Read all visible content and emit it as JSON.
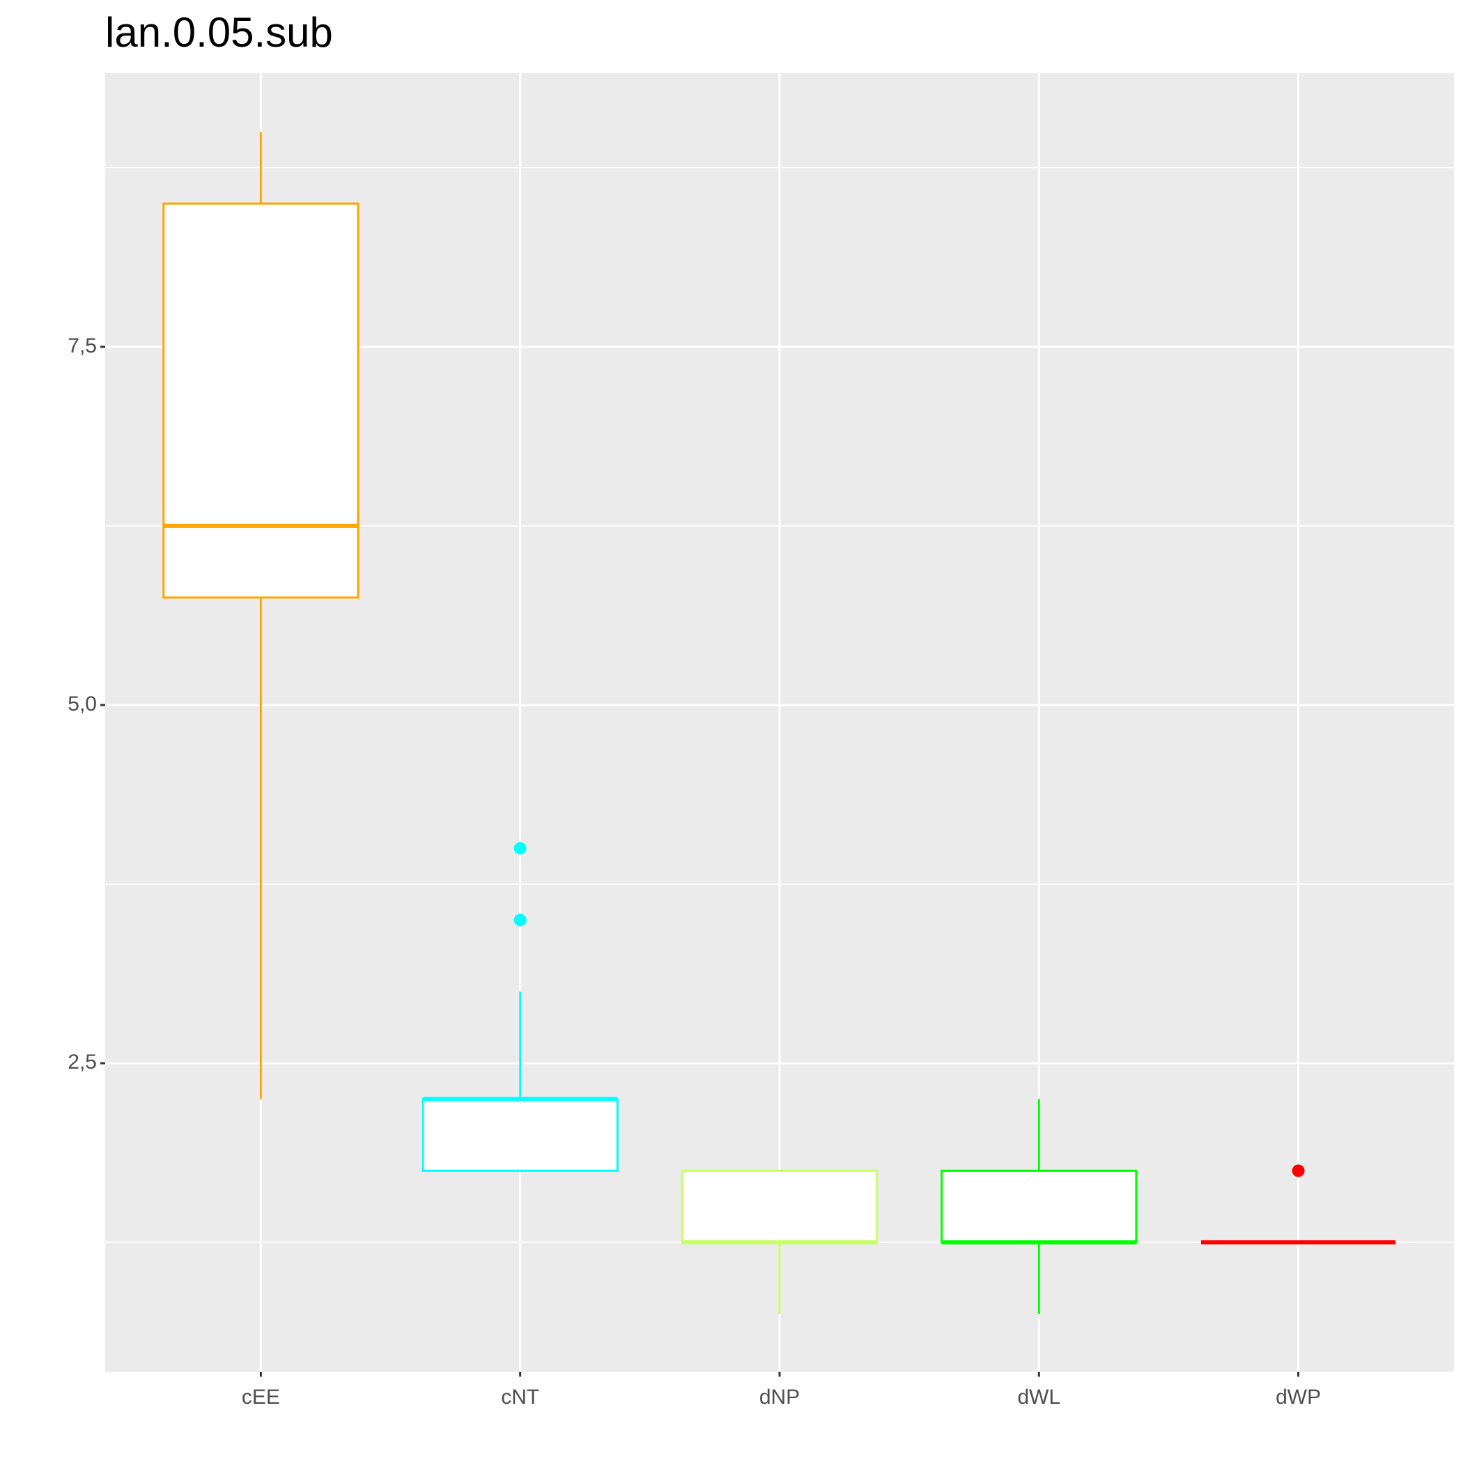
{
  "chart_data": {
    "type": "box",
    "title": "lan.0.05.sub",
    "categories": [
      "cEE",
      "cNT",
      "dNP",
      "dWL",
      "dWP"
    ],
    "colors": [
      "#FFA500",
      "#00FFFF",
      "#C8FF64",
      "#00FF00",
      "#FF0000"
    ],
    "min": [
      2.25,
      1.75,
      0.75,
      0.75,
      1.25
    ],
    "q1": [
      5.75,
      1.75,
      1.25,
      1.25,
      1.25
    ],
    "median": [
      6.25,
      2.25,
      1.25,
      1.25,
      1.25
    ],
    "q3": [
      8.5,
      2.25,
      1.75,
      1.75,
      1.25
    ],
    "max": [
      9.0,
      3.0,
      1.75,
      2.25,
      1.25
    ],
    "outliers": [
      [],
      [
        4.0,
        3.5
      ],
      [],
      [],
      [
        1.75
      ]
    ],
    "ylim": [
      0.347,
      9.41
    ],
    "yticks": [
      {
        "value": 2.5,
        "label": "2,5"
      },
      {
        "value": 5.0,
        "label": "5,0"
      },
      {
        "value": 7.5,
        "label": "7,5"
      }
    ],
    "minor_yticks": [
      1.25,
      3.75,
      6.25,
      8.75
    ],
    "grid": true
  }
}
